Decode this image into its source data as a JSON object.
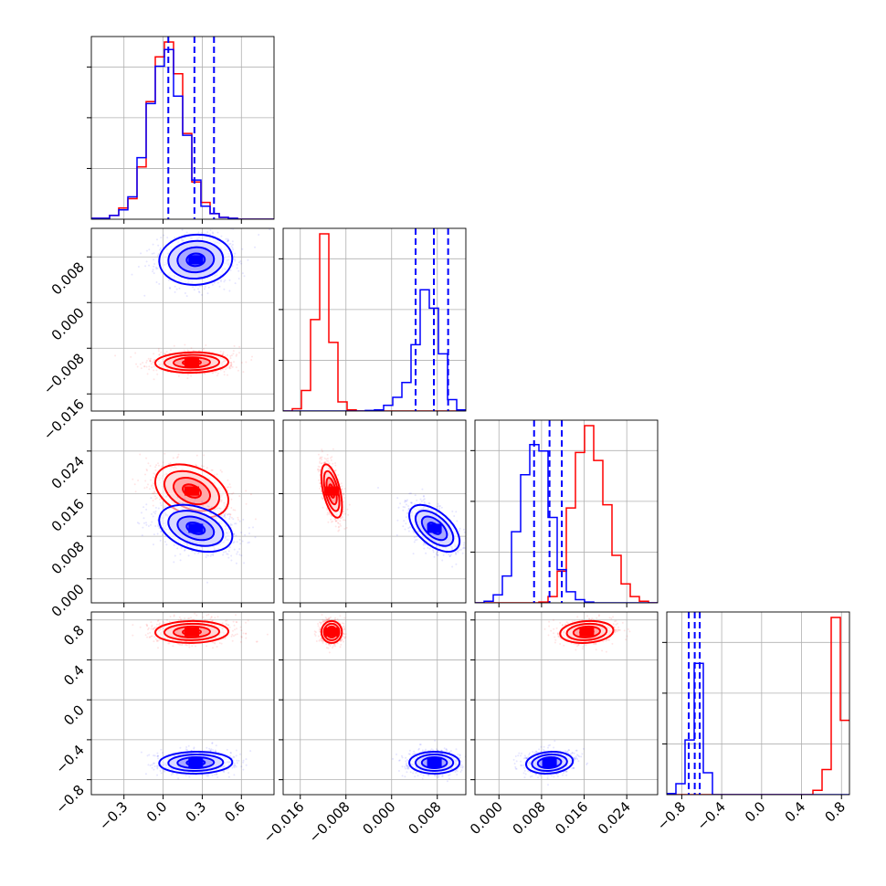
{
  "chart_data": {
    "type": "corner",
    "parameters": [
      {
        "range": [
          -0.55,
          0.85
        ],
        "ticks": [
          -0.3,
          0.0,
          0.3,
          0.6
        ],
        "tick_labels": [
          "−0.3",
          "0.0",
          "0.3",
          "0.6"
        ]
      },
      {
        "range": [
          -0.019,
          0.013
        ],
        "ticks": [
          -0.016,
          -0.008,
          0.0,
          0.008
        ],
        "tick_labels": [
          "−0.016",
          "−0.008",
          "0.000",
          "0.008"
        ]
      },
      {
        "range": [
          -0.0045,
          0.0298
        ],
        "ticks": [
          0.0,
          0.008,
          0.016,
          0.024
        ],
        "tick_labels": [
          "0.000",
          "0.008",
          "0.016",
          "0.024"
        ]
      },
      {
        "range": [
          -0.95,
          0.88
        ],
        "ticks": [
          -0.8,
          -0.4,
          0.0,
          0.4,
          0.8
        ],
        "tick_labels": [
          "−0.8",
          "−0.4",
          "0.0",
          "0.4",
          "0.8"
        ]
      }
    ],
    "grid": true,
    "series": [
      {
        "color": "#ff0000",
        "mean": [
          0.22,
          -0.0105,
          0.0165,
          0.68
        ],
        "std": [
          0.14,
          0.0009,
          0.0025,
          0.055
        ],
        "correlation": [
          [
            1,
            0.05,
            -0.35,
            0.05
          ],
          [
            0.05,
            1,
            -0.55,
            0
          ],
          [
            -0.35,
            -0.55,
            1,
            0.15
          ],
          [
            0.05,
            0,
            0.15,
            1
          ]
        ],
        "quantiles": [],
        "histograms": [
          {
            "bins": [
              -0.55,
              0.85
            ],
            "counts": [
              0.5,
              0.5,
              2,
              6,
              11,
              28,
              63,
              87,
              95,
              78,
              46,
              20,
              9,
              3,
              1,
              0.5,
              0,
              0,
              0,
              0
            ]
          },
          {
            "bins": [
              -0.019,
              0.013
            ],
            "counts": [
              0,
              2,
              18,
              80,
              155,
              60,
              8,
              1,
              0,
              0,
              0,
              0,
              0,
              0,
              0,
              0,
              0,
              0,
              0,
              0
            ]
          },
          {
            "bins": [
              -0.0045,
              0.0298
            ],
            "counts": [
              0,
              0,
              0,
              0,
              0,
              0,
              0,
              0.5,
              4,
              20,
              60,
              95,
              112,
              90,
              62,
              30,
              12,
              4,
              1,
              0
            ]
          },
          {
            "bins": [
              -0.95,
              0.88
            ],
            "counts": [
              0,
              0,
              0,
              0,
              0,
              0,
              0,
              0,
              0,
              0,
              0,
              0,
              0,
              0,
              0,
              0,
              4,
              23,
              162,
              68
            ]
          }
        ]
      },
      {
        "color": "#0000ff",
        "mean": [
          0.25,
          0.0075,
          0.0095,
          -0.63
        ],
        "std": [
          0.14,
          0.0022,
          0.0022,
          0.055
        ],
        "correlation": [
          [
            1,
            0.05,
            -0.35,
            0.05
          ],
          [
            0.05,
            1,
            -0.55,
            0
          ],
          [
            -0.35,
            -0.55,
            1,
            0.15
          ],
          [
            0.05,
            0,
            0.15,
            1
          ]
        ],
        "quantiles": [
          [
            0.04,
            0.24,
            0.39
          ],
          [
            0.0042,
            0.0074,
            0.0099
          ],
          [
            0.0066,
            0.0095,
            0.0118
          ],
          [
            -0.73,
            -0.67,
            -0.62
          ]
        ],
        "histograms": [
          {
            "bins": [
              -0.55,
              0.85
            ],
            "counts": [
              0.5,
              0.5,
              2,
              5,
              12,
              33,
              62,
              82,
              91,
              66,
              45,
              21,
              7,
              3,
              1,
              0.5,
              0,
              0,
              0,
              0
            ]
          },
          {
            "bins": [
              -0.019,
              0.013
            ],
            "counts": [
              0,
              0,
              0,
              0,
              0,
              0,
              0,
              0,
              0,
              0.5,
              1,
              5,
              12,
              25,
              58,
              106,
              90,
              50,
              10,
              1
            ]
          },
          {
            "bins": [
              -0.0045,
              0.0298
            ],
            "counts": [
              0,
              1,
              5,
              17,
              45,
              81,
              100,
              96,
              54,
              21,
              7,
              2,
              0.5,
              0,
              0,
              0,
              0,
              0,
              0,
              0
            ]
          },
          {
            "bins": [
              -0.95,
              0.88
            ],
            "counts": [
              1,
              10,
              50,
              120,
              20,
              0,
              0,
              0,
              0,
              0,
              0,
              0,
              0,
              0,
              0,
              0,
              0,
              0,
              0,
              0
            ]
          }
        ]
      }
    ]
  }
}
